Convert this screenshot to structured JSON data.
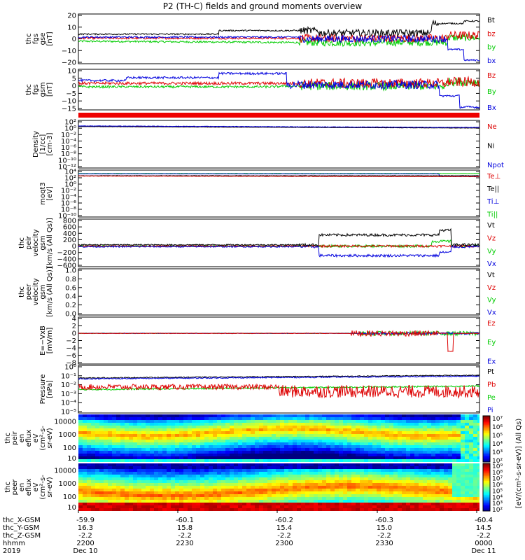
{
  "title": "P2 (TH-C) fields and ground moments overview",
  "chart_data": {
    "type": "line",
    "time_ticks": [
      "2200",
      "2230",
      "2300",
      "2330",
      "0000"
    ],
    "date_ticks": [
      "Dec 10",
      "",
      "",
      "",
      "Dec 11"
    ],
    "year": "2019",
    "ephemeris": [
      {
        "label": "thc_X-GSM",
        "values": [
          "-59.9",
          "-60.1",
          "-60.2",
          "-60.3",
          "-60.4"
        ]
      },
      {
        "label": "thc_Y-GSM",
        "values": [
          "16.3",
          "15.8",
          "15.4",
          "15.0",
          "14.5"
        ]
      },
      {
        "label": "thc_Z-GSM",
        "values": [
          "-2.2",
          "-2.2",
          "-2.2",
          "-2.2",
          "-2.2"
        ]
      },
      {
        "label": "hhmm",
        "values": [
          "2200",
          "2230",
          "2300",
          "2330",
          "0000"
        ]
      }
    ],
    "panels": [
      {
        "id": "fgs-gse",
        "ylabel": [
          "thc",
          "fgs",
          "gse",
          "[nT]"
        ],
        "yticks": [
          "20",
          "10",
          "0",
          "−10",
          "−20"
        ],
        "ylim": [
          -20,
          22
        ],
        "legend": [
          {
            "name": "Bt",
            "color": "#000000"
          },
          {
            "name": "bz",
            "color": "#dd0000"
          },
          {
            "name": "by",
            "color": "#00cc00"
          },
          {
            "name": "bx",
            "color": "#0000dd"
          }
        ]
      },
      {
        "id": "fgs-gsm",
        "ylabel": [
          "thc",
          "fgs",
          "gsm",
          "[nT]"
        ],
        "yticks": [
          "10",
          "5",
          "0",
          "−5",
          "−10",
          "−15"
        ],
        "ylim": [
          -18,
          11
        ],
        "legend": [
          {
            "name": "Bz",
            "color": "#dd0000"
          },
          {
            "name": "By",
            "color": "#00cc00"
          },
          {
            "name": "Bx",
            "color": "#0000dd"
          }
        ]
      },
      {
        "id": "density",
        "ylabel": [
          "Density",
          "[1/cc]",
          "[cm-3]"
        ],
        "yticks": [
          "10²",
          "10⁰",
          "10⁻²",
          "10⁻⁴",
          "10⁻⁶",
          "10⁻⁸",
          "10⁻¹⁰",
          "10⁻¹²"
        ],
        "log": true,
        "ylim": [
          -13,
          2.5
        ],
        "legend": [
          {
            "name": "Ne",
            "color": "#dd0000"
          },
          {
            "name": "Ni",
            "color": "#000000"
          },
          {
            "name": "Npot",
            "color": "#0000dd"
          }
        ]
      },
      {
        "id": "temperature",
        "ylabel": [
          "moqt3",
          "[eV]"
        ],
        "yticks": [
          "10⁴",
          "10²",
          "10⁰",
          "10⁻²",
          "10⁻⁴",
          "10⁻⁶",
          "10⁻⁸",
          "10⁻¹⁰"
        ],
        "log": true,
        "ylim": [
          -10.5,
          4.5
        ],
        "legend": [
          {
            "name": "Te⊥",
            "color": "#dd0000"
          },
          {
            "name": "Te||",
            "color": "#000000"
          },
          {
            "name": "Ti⊥",
            "color": "#0000dd"
          },
          {
            "name": "Ti||",
            "color": "#00cc00"
          }
        ]
      },
      {
        "id": "ion-velocity",
        "ylabel": [
          "thc",
          "peir",
          "velocity",
          "gsm",
          "[km/s (All Qs)]"
        ],
        "yticks": [
          "800",
          "600",
          "400",
          "200",
          "0",
          "−200",
          "−400",
          "−600"
        ],
        "ylim": [
          -650,
          850
        ],
        "legend": [
          {
            "name": "Vt",
            "color": "#000000"
          },
          {
            "name": "Vz",
            "color": "#dd0000"
          },
          {
            "name": "Vy",
            "color": "#00cc00"
          },
          {
            "name": "Vx",
            "color": "#0000dd"
          }
        ]
      },
      {
        "id": "electron-velocity",
        "ylabel": [
          "thc",
          "peer",
          "velocity",
          "gsm",
          "[km/s (All Qs)]"
        ],
        "yticks": [
          "1.0",
          "0.8",
          "0.6",
          "0.4",
          "0.2",
          "0.0"
        ],
        "ylim": [
          0,
          1
        ],
        "legend": [
          {
            "name": "Vt",
            "color": "#000000"
          },
          {
            "name": "Vz",
            "color": "#dd0000"
          },
          {
            "name": "Vy",
            "color": "#00cc00"
          },
          {
            "name": "Vx",
            "color": "#0000dd"
          }
        ]
      },
      {
        "id": "efield",
        "ylabel": [
          "E=−VxB",
          "[mV/m]"
        ],
        "yticks": [
          "4",
          "2",
          "0",
          "−2",
          "−4",
          "−6",
          "−8"
        ],
        "ylim": [
          -8.5,
          4.5
        ],
        "legend": [
          {
            "name": "Ez",
            "color": "#dd0000"
          },
          {
            "name": "Ey",
            "color": "#00cc00"
          },
          {
            "name": "Ex",
            "color": "#0000dd"
          }
        ]
      },
      {
        "id": "pressure",
        "ylabel": [
          "Pressure",
          "[nPa]"
        ],
        "yticks": [
          "10⁰",
          "10⁻¹",
          "10⁻²",
          "10⁻³",
          "10⁻⁴",
          "10⁻⁵"
        ],
        "log": true,
        "ylim": [
          -5.2,
          0.1
        ],
        "legend": [
          {
            "name": "Pt",
            "color": "#000000"
          },
          {
            "name": "Pb",
            "color": "#dd0000"
          },
          {
            "name": "Pe",
            "color": "#00cc00"
          },
          {
            "name": "Pi",
            "color": "#0000dd"
          }
        ]
      },
      {
        "id": "ion-spectrogram",
        "type": "heatmap",
        "ylabel": [
          "thc",
          "peir",
          "en",
          "eflux",
          "eV",
          "(cm²-s-",
          "sr-eV)"
        ],
        "yticks": [
          "10000",
          "1000",
          "100",
          "10"
        ]
      },
      {
        "id": "electron-spectrogram",
        "type": "heatmap",
        "ylabel": [
          "thc",
          "peer",
          "en",
          "eflux",
          "eV",
          "(cm²-s-",
          "sr-eV)"
        ],
        "yticks": [
          "10000",
          "1000",
          "100",
          "10"
        ]
      }
    ],
    "colorbar": {
      "label": "[eV/(cm²-s-sr-eV)] (All Qs)",
      "ion_ticks": [
        "10⁷",
        "10⁶",
        "10⁵",
        "10⁴",
        "10³",
        "10²"
      ],
      "electron_ticks": [
        "10⁹",
        "10⁸",
        "10⁷",
        "10⁶",
        "10⁵",
        "10⁴",
        "10³",
        "10²"
      ]
    }
  }
}
